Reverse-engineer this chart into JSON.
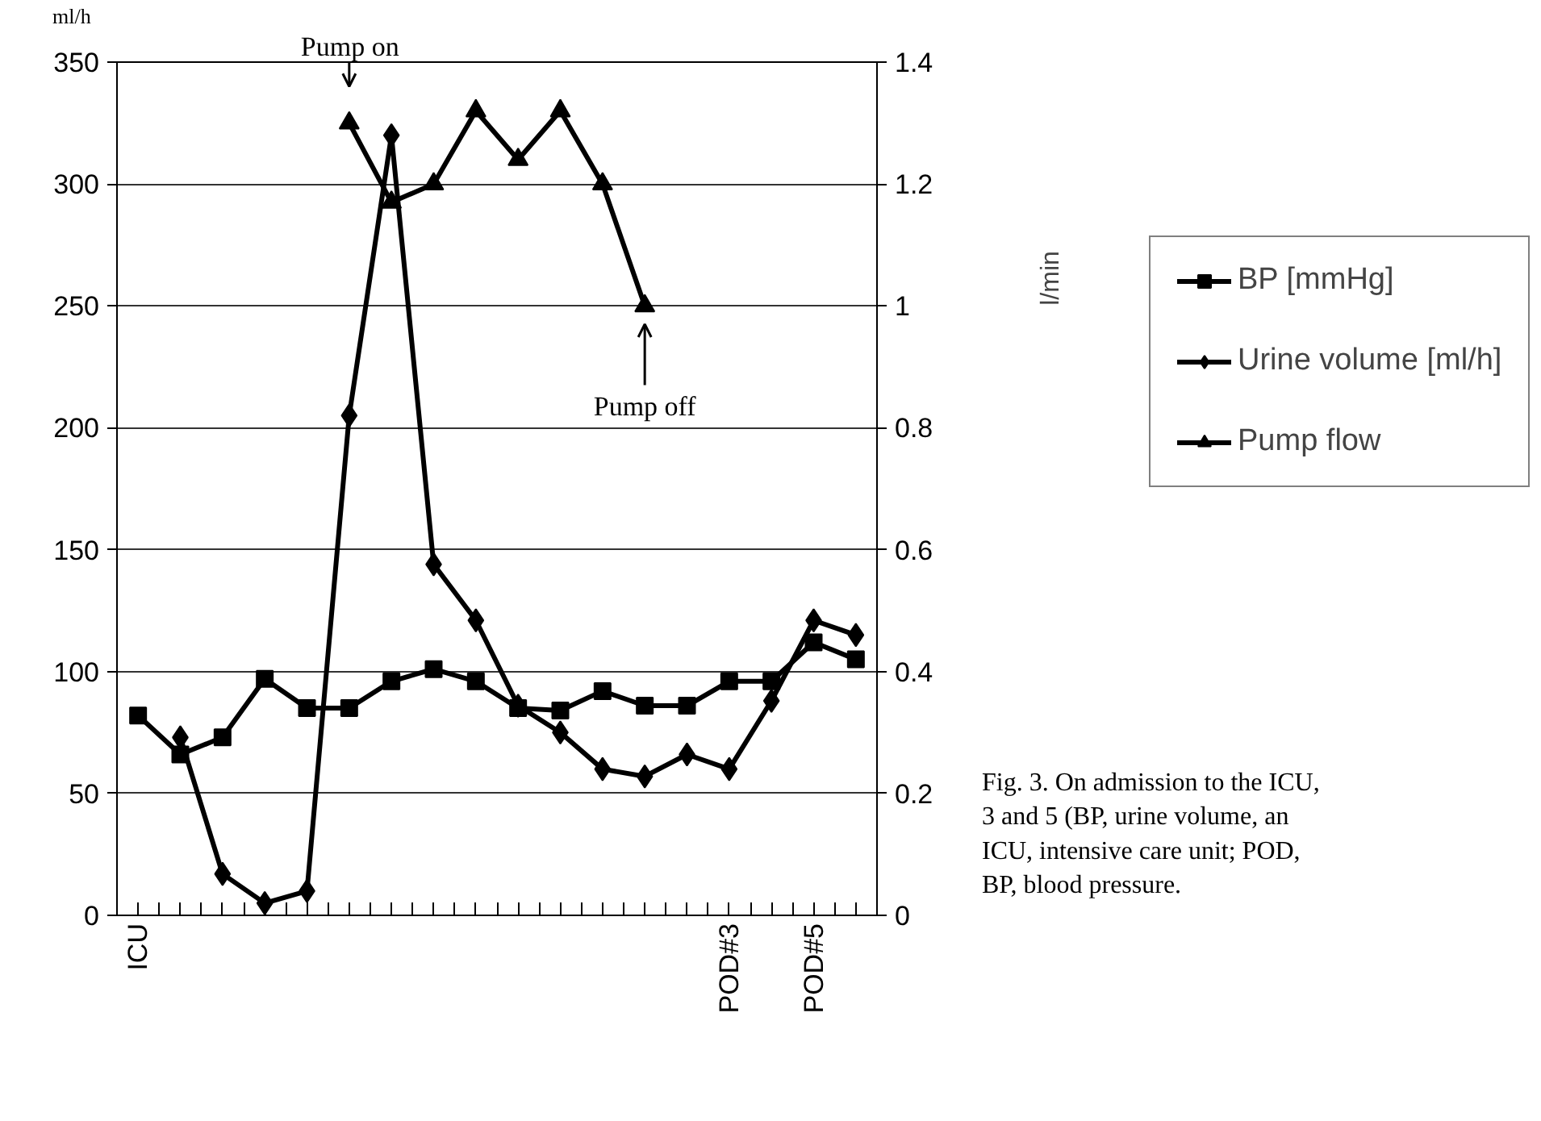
{
  "chart_data": {
    "type": "line",
    "ylabel": "ml/h",
    "y2label": "l/min",
    "categories": [
      "ICU",
      null,
      null,
      null,
      null,
      null,
      null,
      null,
      null,
      null,
      null,
      null,
      null,
      null,
      "POD#3",
      null,
      "POD#5",
      null
    ],
    "series": [
      {
        "name": "BP [mmHg]",
        "color": "#000000",
        "marker": "square",
        "values": [
          82,
          66,
          73,
          97,
          85,
          85,
          96,
          101,
          96,
          85,
          84,
          92,
          86,
          86,
          96,
          96,
          112,
          105
        ]
      },
      {
        "name": "Urine volume [ml/h]",
        "color": "#000000",
        "marker": "diamond",
        "values": [
          null,
          73,
          17,
          5,
          10,
          205,
          320,
          144,
          121,
          86,
          75,
          60,
          57,
          66,
          60,
          88,
          121,
          115
        ]
      },
      {
        "name": "Pump flow",
        "color": "#000000",
        "marker": "triangle",
        "axis": "y2",
        "values": [
          null,
          null,
          null,
          null,
          null,
          1.3,
          1.17,
          1.2,
          1.32,
          1.24,
          1.32,
          1.2,
          1.0,
          null,
          null,
          null,
          null,
          null
        ]
      }
    ],
    "ylim": [
      0,
      350
    ],
    "yticks": [
      0,
      50,
      100,
      150,
      200,
      250,
      300,
      350
    ],
    "y2lim": [
      0,
      1.4
    ],
    "y2ticks": [
      0,
      0.2,
      0.4,
      0.6,
      0.8,
      1,
      1.2,
      1.4
    ],
    "grid": "y",
    "legend": "right",
    "line_style": "solid",
    "annotations": [
      "Pump on",
      "Pump off",
      "Fig. 3. On admission to the ICU,\n3 and 5 (BP, urine volume, an\nICU, intensive care unit; POD,\nBP, blood pressure."
    ]
  }
}
